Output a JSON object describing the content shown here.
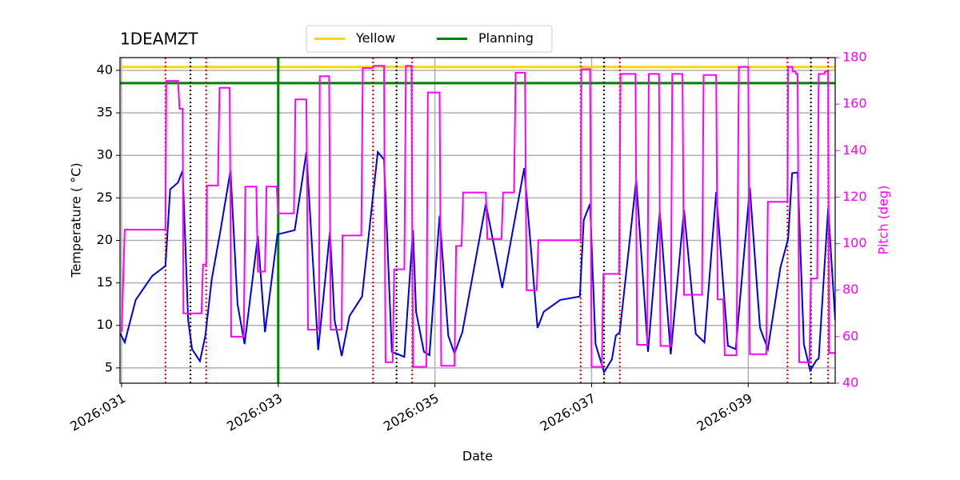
{
  "chart_data": {
    "type": "line",
    "title": "1DEAMZT",
    "xlabel": "Date",
    "ylabel": "Temperature ( °C)",
    "y2label": "Pitch (deg)",
    "y2color": "#ff00ff",
    "grid": true,
    "legend": "upper center",
    "xlim": [
      30.98,
      40.11
    ],
    "xticks": [
      {
        "value": 31,
        "label": "2026:031"
      },
      {
        "value": 33,
        "label": "2026:033"
      },
      {
        "value": 35,
        "label": "2026:035"
      },
      {
        "value": 37,
        "label": "2026:037"
      },
      {
        "value": 39,
        "label": "2026:039"
      }
    ],
    "ylim": [
      3.2,
      41.5
    ],
    "yticks": [
      5,
      10,
      15,
      20,
      25,
      30,
      35,
      40
    ],
    "y2lim": [
      40,
      180
    ],
    "y2ticks": [
      40,
      60,
      80,
      100,
      120,
      140,
      160,
      180
    ],
    "series": [
      {
        "color": "#0000e0",
        "x": [
          30.98,
          31.04,
          31.18,
          31.39,
          31.56,
          31.62,
          31.72,
          31.78,
          31.85,
          31.9,
          32.0,
          32.07,
          32.15,
          32.26,
          32.39,
          32.48,
          32.57,
          32.74,
          32.83,
          32.99,
          33.21,
          33.36,
          33.51,
          33.66,
          33.72,
          33.81,
          33.91,
          34.07,
          34.27,
          34.35,
          34.45,
          34.61,
          34.72,
          34.76,
          34.86,
          34.93,
          35.06,
          35.17,
          35.25,
          35.35,
          35.65,
          35.86,
          36.14,
          36.31,
          36.39,
          36.6,
          36.85,
          36.9,
          36.98,
          37.05,
          37.16,
          37.26,
          37.31,
          37.36,
          37.57,
          37.72,
          37.87,
          38.01,
          38.18,
          38.33,
          38.44,
          38.59,
          38.74,
          38.84,
          39.02,
          39.15,
          39.25,
          39.41,
          39.51,
          39.56,
          39.63,
          39.71,
          39.79,
          39.87,
          39.9,
          40.02,
          40.11
        ],
        "values": [
          9.1,
          8.0,
          13.0,
          15.8,
          17.0,
          26.0,
          26.8,
          28.2,
          10.6,
          7.2,
          5.8,
          8.8,
          15.4,
          21.0,
          28.2,
          12.5,
          7.8,
          20.5,
          9.2,
          20.7,
          21.2,
          30.4,
          7.1,
          21.0,
          10.6,
          6.4,
          11.1,
          13.4,
          30.4,
          29.5,
          6.9,
          6.3,
          21.2,
          11.6,
          6.9,
          6.5,
          22.9,
          8.8,
          6.7,
          9.2,
          24.3,
          14.4,
          28.5,
          9.7,
          11.6,
          13.0,
          13.4,
          22.4,
          24.3,
          7.8,
          4.5,
          6.0,
          8.8,
          9.2,
          27.1,
          6.9,
          23.4,
          6.6,
          23.6,
          9.0,
          8.0,
          25.7,
          7.6,
          7.2,
          26.2,
          9.7,
          7.2,
          16.8,
          20.2,
          27.9,
          28.0,
          7.8,
          4.7,
          5.9,
          6.1,
          23.8,
          10.6
        ]
      },
      {
        "color": "#ff00ff",
        "axis": "y2",
        "x": [
          31.0,
          31.04,
          31.56,
          31.57,
          31.72,
          31.74,
          31.78,
          31.79,
          32.02,
          32.04,
          32.08,
          32.09,
          32.23,
          32.25,
          32.38,
          32.4,
          32.56,
          32.58,
          32.72,
          32.74,
          32.83,
          32.85,
          32.98,
          33.0,
          33.2,
          33.22,
          33.36,
          33.38,
          33.52,
          33.53,
          33.65,
          33.67,
          33.81,
          33.82,
          34.06,
          34.08,
          34.2,
          34.22,
          34.35,
          34.37,
          34.46,
          34.48,
          34.61,
          34.63,
          34.7,
          34.72,
          34.89,
          34.91,
          35.06,
          35.08,
          35.25,
          35.27,
          35.34,
          35.36,
          35.65,
          35.67,
          35.85,
          35.87,
          36.01,
          36.03,
          36.15,
          36.17,
          36.3,
          36.32,
          36.86,
          36.87,
          36.98,
          37.0,
          37.13,
          37.15,
          37.35,
          37.37,
          37.56,
          37.58,
          37.71,
          37.73,
          37.86,
          37.88,
          38.01,
          38.03,
          38.16,
          38.18,
          38.41,
          38.43,
          38.59,
          38.61,
          38.68,
          38.7,
          38.85,
          38.88,
          39.0,
          39.02,
          39.23,
          39.25,
          39.5,
          39.51,
          39.56,
          39.57,
          39.6,
          39.61,
          39.63,
          39.65,
          39.78,
          39.8,
          39.88,
          39.9,
          39.97,
          39.98,
          40.02,
          40.03,
          40.11
        ],
        "values": [
          62,
          106,
          106,
          170,
          170,
          158,
          158,
          70,
          70,
          91,
          91,
          125,
          125,
          167,
          167,
          60,
          60,
          124.5,
          124.5,
          88,
          88,
          124.5,
          124.5,
          113,
          113,
          162,
          162,
          63,
          63,
          172,
          172,
          63,
          63,
          103.5,
          103.5,
          175.5,
          175.5,
          176.5,
          176.5,
          49,
          49,
          89,
          89,
          176.5,
          176.5,
          47,
          47,
          165,
          165,
          47.5,
          47.5,
          99,
          99,
          122,
          122,
          102,
          102,
          122,
          122,
          173.5,
          173.5,
          80,
          80,
          101.5,
          101.5,
          175,
          175,
          47,
          47,
          87,
          87,
          173,
          173,
          56.5,
          56.5,
          173,
          173,
          56,
          56,
          173,
          173,
          78,
          78,
          172.5,
          172.5,
          76,
          76,
          52,
          52,
          176,
          176,
          52.5,
          52.5,
          118,
          118,
          176,
          176,
          174,
          174,
          173,
          173,
          49,
          49,
          85,
          85,
          173,
          173,
          174,
          174,
          53,
          53
        ]
      }
    ],
    "hlines": [
      {
        "name": "Yellow",
        "color": "#ffd700",
        "value": 40.4
      },
      {
        "name": "Planning",
        "color": "#008000",
        "value": 38.5
      }
    ],
    "vlines": [
      {
        "value": 33.0,
        "color": "#008000",
        "style": "solid"
      },
      {
        "value": 31.56,
        "color": "#e00000",
        "style": "dotted"
      },
      {
        "value": 32.08,
        "color": "#e00000",
        "style": "dotted"
      },
      {
        "value": 34.21,
        "color": "#e00000",
        "style": "dotted"
      },
      {
        "value": 34.71,
        "color": "#e00000",
        "style": "dotted"
      },
      {
        "value": 36.86,
        "color": "#e00000",
        "style": "dotted"
      },
      {
        "value": 37.36,
        "color": "#e00000",
        "style": "dotted"
      },
      {
        "value": 39.5,
        "color": "#e00000",
        "style": "dotted"
      },
      {
        "value": 40.02,
        "color": "#e00000",
        "style": "dotted"
      },
      {
        "value": 31.88,
        "color": "#000000",
        "style": "dotted"
      },
      {
        "value": 34.51,
        "color": "#000000",
        "style": "dotted"
      },
      {
        "value": 37.16,
        "color": "#000000",
        "style": "dotted"
      },
      {
        "value": 39.8,
        "color": "#000000",
        "style": "dotted"
      }
    ]
  }
}
